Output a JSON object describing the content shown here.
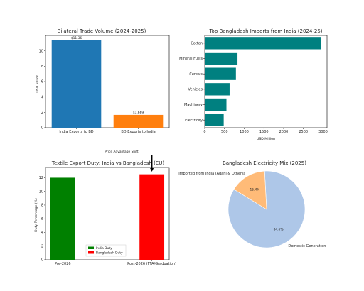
{
  "chart_data": [
    {
      "type": "bar",
      "title": "Bilateral Trade Volume (2024-2025)",
      "ylabel": "USD Billion",
      "categories": [
        "India Exports to BD",
        "BD Exports to India"
      ],
      "values": [
        11.36,
        1.669
      ],
      "data_labels": [
        "$11.36",
        "$1.669"
      ],
      "colors": [
        "#1f77b4",
        "#ff7f0e"
      ],
      "ylim": [
        0,
        12
      ],
      "yticks": [
        0,
        2,
        4,
        6,
        8,
        10
      ]
    },
    {
      "type": "bar",
      "orientation": "horizontal",
      "title": "Top Bangladesh Imports from India (2024-25)",
      "xlabel": "USD Million",
      "categories": [
        "Cotton",
        "Mineral Fuels",
        "Cereals",
        "Vehicles",
        "Machinery",
        "Electricity"
      ],
      "values": [
        2950,
        830,
        790,
        630,
        550,
        480
      ],
      "color": "#008080",
      "xlim": [
        0,
        3100
      ],
      "xticks": [
        0,
        500,
        1000,
        1500,
        2000,
        2500,
        3000
      ]
    },
    {
      "type": "bar",
      "title": "Textile Export Duty: India vs Bangladesh (EU)",
      "ylabel": "Duty Percentage (%)",
      "categories": [
        "Pre-2026",
        "Post-2026 (FTA/Graduation)"
      ],
      "series": [
        {
          "name": "India Duty",
          "values": [
            12,
            null
          ],
          "color": "#008000"
        },
        {
          "name": "Bangladesh Duty",
          "values": [
            null,
            12.5
          ],
          "color": "#ff0000"
        }
      ],
      "ylim": [
        0,
        13.5
      ],
      "yticks": [
        0,
        2,
        4,
        6,
        8,
        10,
        12
      ],
      "legend": "lower-center",
      "annotation": "Price Advantage Shift"
    },
    {
      "type": "pie",
      "title": "Bangladesh Electricity Mix (2025)",
      "slices": [
        {
          "label": "Domestic Generation",
          "value": 84.6,
          "pct_label": "84.6%",
          "color": "#aec7e8"
        },
        {
          "label": "Imported from India (Adani & Others)",
          "value": 15.4,
          "pct_label": "15.4%",
          "color": "#ffbb78"
        }
      ]
    }
  ]
}
